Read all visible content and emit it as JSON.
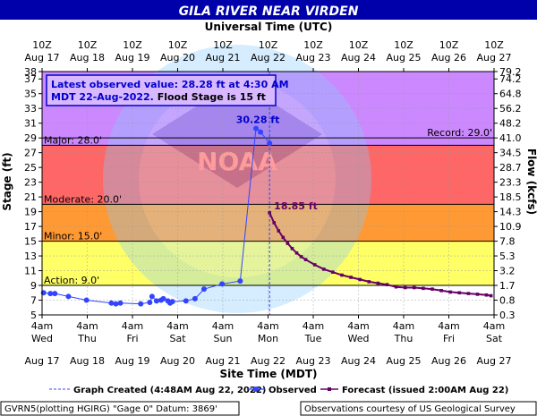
{
  "title": "GILA RIVER NEAR VIRDEN",
  "top_axis_title": "Universal Time (UTC)",
  "bottom_axis_title": "Site Time (MDT)",
  "left_axis_title": "Stage (ft)",
  "right_axis_title": "Flow (kcfs)",
  "info_box": {
    "line1": "Latest observed value: 28.28 ft at 4:30 AM",
    "line2_a": "MDT 22-Aug-2022.",
    "line2_b": " Flood Stage is 15 ft"
  },
  "legend": {
    "created": "Graph Created (4:48AM Aug 22, 2022)",
    "observed": "Observed",
    "forecast": "Forecast (issued 2:00AM Aug 22)"
  },
  "footer_left": "GVRN5(plotting HGIRG) \"Gage 0\" Datum: 3869'",
  "footer_right": "Observations courtesy of US Geological Survey",
  "watermark": {
    "top_text": "NATIONAL OCEANIC AND ATMOSPHERIC ADMINISTRATION",
    "bottom_text": "U.S. DEPARTMENT OF COMMERCE",
    "center": "NOAA"
  },
  "colors": {
    "major": "#cc66ff",
    "moderate": "#ff6666",
    "minor": "#ff9933",
    "action": "#ffff66",
    "normal": "#ffffff",
    "observed": "#3344ff",
    "forecast": "#660066",
    "title_bg": "#0000aa",
    "plot_top": "#cc88ff"
  },
  "chart_data": {
    "type": "line",
    "title": "GILA RIVER NEAR VIRDEN",
    "ylabel": "Stage (ft)",
    "y2label": "Flow (kcfs)",
    "xlabel": "Site Time (MDT)",
    "x2label": "Universal Time (UTC)",
    "ylim": [
      5,
      38
    ],
    "xlim_days": [
      17.1667,
      27.1667
    ],
    "y_ticks": [
      5,
      7,
      9,
      11,
      13,
      15,
      17,
      19,
      21,
      23,
      25,
      27,
      29,
      31,
      33,
      35,
      37,
      38
    ],
    "y2_ticks": [
      "0.3",
      "0.8",
      "1.7",
      "3.2",
      "5.3",
      "7.8",
      "10.9",
      "14.3",
      "18.5",
      "23.3",
      "28.7",
      "34.5",
      "41.0",
      "48.2",
      "56.2",
      "64.8",
      "74.2",
      "79.2"
    ],
    "x_ticks": [
      {
        "day": 17.1667,
        "time": "4am",
        "wd": "Wed",
        "date": "Aug 17"
      },
      {
        "day": 18.1667,
        "time": "4am",
        "wd": "Thu",
        "date": "Aug 18"
      },
      {
        "day": 19.1667,
        "time": "4am",
        "wd": "Fri",
        "date": "Aug 19"
      },
      {
        "day": 20.1667,
        "time": "4am",
        "wd": "Sat",
        "date": "Aug 20"
      },
      {
        "day": 21.1667,
        "time": "4am",
        "wd": "Sun",
        "date": "Aug 21"
      },
      {
        "day": 22.1667,
        "time": "4am",
        "wd": "Mon",
        "date": "Aug 22"
      },
      {
        "day": 23.1667,
        "time": "4am",
        "wd": "Tue",
        "date": "Aug 23"
      },
      {
        "day": 24.1667,
        "time": "4am",
        "wd": "Wed",
        "date": "Aug 24"
      },
      {
        "day": 25.1667,
        "time": "4am",
        "wd": "Thu",
        "date": "Aug 25"
      },
      {
        "day": 26.1667,
        "time": "4am",
        "wd": "Fri",
        "date": "Aug 26"
      },
      {
        "day": 27.1667,
        "time": "4am",
        "wd": "Sat",
        "date": "Aug 27"
      }
    ],
    "x2_ticks": [
      {
        "time": "10Z",
        "date": "Aug 17"
      },
      {
        "time": "10Z",
        "date": "Aug 18"
      },
      {
        "time": "10Z",
        "date": "Aug 19"
      },
      {
        "time": "10Z",
        "date": "Aug 20"
      },
      {
        "time": "10Z",
        "date": "Aug 21"
      },
      {
        "time": "10Z",
        "date": "Aug 22"
      },
      {
        "time": "10Z",
        "date": "Aug 23"
      },
      {
        "time": "10Z",
        "date": "Aug 24"
      },
      {
        "time": "10Z",
        "date": "Aug 25"
      },
      {
        "time": "10Z",
        "date": "Aug 26"
      },
      {
        "time": "10Z",
        "date": "Aug 27"
      }
    ],
    "flood_categories": [
      {
        "name": "Major",
        "label": "Major: 28.0'",
        "stage": 28.0,
        "color": "#cc66ff"
      },
      {
        "name": "Moderate",
        "label": "Moderate: 20.0'",
        "stage": 20.0,
        "color": "#ff6666"
      },
      {
        "name": "Minor",
        "label": "Minor: 15.0'",
        "stage": 15.0,
        "color": "#ff9933"
      },
      {
        "name": "Action",
        "label": "Action: 9.0'",
        "stage": 9.0,
        "color": "#ffff66"
      }
    ],
    "record": {
      "label": "Record: 29.0'",
      "stage": 29.0
    },
    "created_line_day": 22.2,
    "peak_label": "30.28 ft",
    "forecast_label": "18.85 ft",
    "observed": [
      [
        17.2,
        8.0
      ],
      [
        17.35,
        7.9
      ],
      [
        17.45,
        7.9
      ],
      [
        17.75,
        7.5
      ],
      [
        18.15,
        7.0
      ],
      [
        18.7,
        6.6
      ],
      [
        18.8,
        6.5
      ],
      [
        18.9,
        6.6
      ],
      [
        19.35,
        6.5
      ],
      [
        19.55,
        6.7
      ],
      [
        19.6,
        7.5
      ],
      [
        19.7,
        6.9
      ],
      [
        19.8,
        7.0
      ],
      [
        19.85,
        7.2
      ],
      [
        19.95,
        6.9
      ],
      [
        20.0,
        6.6
      ],
      [
        20.05,
        6.8
      ],
      [
        20.35,
        6.9
      ],
      [
        20.55,
        7.2
      ],
      [
        20.75,
        8.5
      ],
      [
        21.15,
        9.2
      ],
      [
        21.55,
        9.6
      ],
      [
        21.9,
        30.28
      ],
      [
        22.0,
        29.8
      ],
      [
        22.2,
        28.28
      ]
    ],
    "forecast": [
      [
        22.2,
        18.85
      ],
      [
        22.3,
        17.5
      ],
      [
        22.4,
        16.4
      ],
      [
        22.5,
        15.5
      ],
      [
        22.6,
        14.7
      ],
      [
        22.7,
        14.0
      ],
      [
        22.8,
        13.4
      ],
      [
        22.9,
        12.9
      ],
      [
        23.0,
        12.5
      ],
      [
        23.2,
        11.8
      ],
      [
        23.4,
        11.2
      ],
      [
        23.6,
        10.8
      ],
      [
        23.8,
        10.4
      ],
      [
        24.0,
        10.1
      ],
      [
        24.2,
        9.8
      ],
      [
        24.4,
        9.5
      ],
      [
        24.6,
        9.3
      ],
      [
        24.8,
        9.1
      ],
      [
        25.0,
        8.8
      ],
      [
        25.2,
        8.7
      ],
      [
        25.4,
        8.7
      ],
      [
        25.6,
        8.6
      ],
      [
        25.8,
        8.5
      ],
      [
        26.0,
        8.3
      ],
      [
        26.2,
        8.1
      ],
      [
        26.4,
        8.0
      ],
      [
        26.6,
        7.9
      ],
      [
        26.8,
        7.8
      ],
      [
        27.0,
        7.7
      ],
      [
        27.1,
        7.6
      ]
    ]
  }
}
